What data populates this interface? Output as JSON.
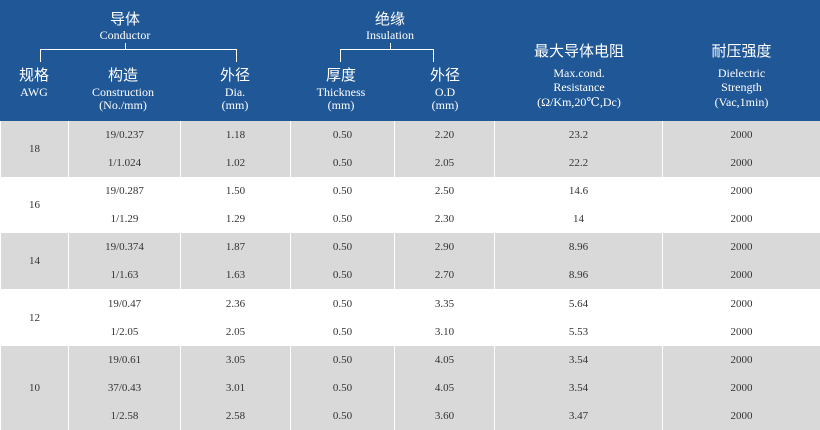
{
  "header": {
    "conductor_cn": "导体",
    "conductor_en": "Conductor",
    "insulation_cn": "绝缘",
    "insulation_en": "Insulation",
    "awg_cn": "规格",
    "awg_en": "AWG",
    "construction_cn": "构造",
    "construction_en": "Construction",
    "construction_unit": "(No./mm)",
    "dia_cn": "外径",
    "dia_en": "Dia.",
    "dia_unit": "(mm)",
    "thickness_cn": "厚度",
    "thickness_en": "Thickness",
    "thickness_unit": "(mm)",
    "od_cn": "外径",
    "od_en": "O.D",
    "od_unit": "(mm)",
    "resistance_cn": "最大导体电阻",
    "resistance_en1": "Max.cond.",
    "resistance_en2": "Resistance",
    "resistance_unit": "(Ω/Km,20℃,Dc)",
    "dielectric_cn": "耐压强度",
    "dielectric_en1": "Dielectric",
    "dielectric_en2": "Strength",
    "dielectric_unit": "(Vac,1min)"
  },
  "groups": [
    {
      "awg": "18",
      "rows": [
        {
          "construction": "19/0.237",
          "dia": "1.18",
          "thickness": "0.50",
          "od": "2.20",
          "resistance": "23.2",
          "dielectric": "2000"
        },
        {
          "construction": "1/1.024",
          "dia": "1.02",
          "thickness": "0.50",
          "od": "2.05",
          "resistance": "22.2",
          "dielectric": "2000"
        }
      ]
    },
    {
      "awg": "16",
      "rows": [
        {
          "construction": "19/0.287",
          "dia": "1.50",
          "thickness": "0.50",
          "od": "2.50",
          "resistance": "14.6",
          "dielectric": "2000"
        },
        {
          "construction": "1/1.29",
          "dia": "1.29",
          "thickness": "0.50",
          "od": "2.30",
          "resistance": "14",
          "dielectric": "2000"
        }
      ]
    },
    {
      "awg": "14",
      "rows": [
        {
          "construction": "19/0.374",
          "dia": "1.87",
          "thickness": "0.50",
          "od": "2.90",
          "resistance": "8.96",
          "dielectric": "2000"
        },
        {
          "construction": "1/1.63",
          "dia": "1.63",
          "thickness": "0.50",
          "od": "2.70",
          "resistance": "8.96",
          "dielectric": "2000"
        }
      ]
    },
    {
      "awg": "12",
      "rows": [
        {
          "construction": "19/0.47",
          "dia": "2.36",
          "thickness": "0.50",
          "od": "3.35",
          "resistance": "5.64",
          "dielectric": "2000"
        },
        {
          "construction": "1/2.05",
          "dia": "2.05",
          "thickness": "0.50",
          "od": "3.10",
          "resistance": "5.53",
          "dielectric": "2000"
        }
      ]
    },
    {
      "awg": "10",
      "rows": [
        {
          "construction": "19/0.61",
          "dia": "3.05",
          "thickness": "0.50",
          "od": "4.05",
          "resistance": "3.54",
          "dielectric": "2000"
        },
        {
          "construction": "37/0.43",
          "dia": "3.01",
          "thickness": "0.50",
          "od": "4.05",
          "resistance": "3.54",
          "dielectric": "2000"
        },
        {
          "construction": "1/2.58",
          "dia": "2.58",
          "thickness": "0.50",
          "od": "3.60",
          "resistance": "3.47",
          "dielectric": "2000"
        }
      ]
    }
  ],
  "colors": {
    "header_bg": "#1f5797",
    "shaded_row": "#d9d9d9",
    "plain_row": "#ffffff"
  }
}
